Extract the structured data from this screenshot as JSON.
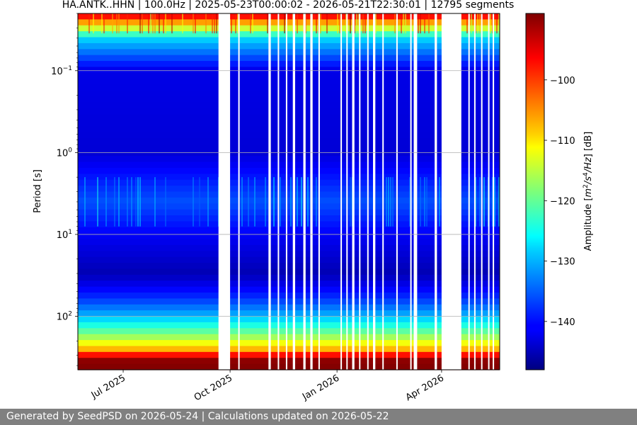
{
  "chart_data": {
    "type": "heatmap",
    "title": "HA.ANTK..HHN | 100.0Hz | 2025-05-23T00:00:02 - 2026-05-21T22:30:01 | 12795 segments",
    "ylabel": "Period [s]",
    "xlabel": "",
    "y_scale": "log",
    "y_axis_inverted": true,
    "y_range": [
      0.02,
      450
    ],
    "y_ticks": [
      {
        "value": 0.1,
        "base": "10",
        "exp": "−1"
      },
      {
        "value": 1,
        "base": "10",
        "exp": "0"
      },
      {
        "value": 10,
        "base": "10",
        "exp": "1"
      },
      {
        "value": 100,
        "base": "10",
        "exp": "2"
      }
    ],
    "x_range": [
      "2025-05-23",
      "2026-05-21"
    ],
    "x_ticks": [
      {
        "date": "2025-07-01",
        "label": "Jul 2025"
      },
      {
        "date": "2025-10-01",
        "label": "Oct 2025"
      },
      {
        "date": "2026-01-01",
        "label": "Jan 2026"
      },
      {
        "date": "2026-04-01",
        "label": "Apr 2026"
      }
    ],
    "grid": true,
    "colormap": "jet",
    "colorbar": {
      "label_pre": "Amplitude [",
      "label_m": "m",
      "label_sup2": "2",
      "label_s": "/s",
      "label_sup4": "4",
      "label_hz": "/Hz",
      "label_post": "] [dB]",
      "range": [
        -148,
        -89
      ],
      "ticks": [
        {
          "value": -100,
          "label": "−100"
        },
        {
          "value": -110,
          "label": "−110"
        },
        {
          "value": -120,
          "label": "−120"
        },
        {
          "value": -130,
          "label": "−130"
        },
        {
          "value": -140,
          "label": "−140"
        }
      ]
    },
    "data_gaps": [
      [
        "2025-09-21",
        "2025-10-01"
      ],
      [
        "2025-10-08",
        "2025-10-09"
      ],
      [
        "2025-11-03",
        "2025-11-05"
      ],
      [
        "2025-11-11",
        "2025-11-12"
      ],
      [
        "2025-11-18",
        "2025-11-19"
      ],
      [
        "2025-11-24",
        "2025-11-26"
      ],
      [
        "2025-12-03",
        "2025-12-05"
      ],
      [
        "2025-12-09",
        "2025-12-11"
      ],
      [
        "2025-12-16",
        "2025-12-17"
      ],
      [
        "2026-01-04",
        "2026-01-05"
      ],
      [
        "2026-01-09",
        "2026-01-10"
      ],
      [
        "2026-01-14",
        "2026-01-16"
      ],
      [
        "2026-01-20",
        "2026-01-21"
      ],
      [
        "2026-01-27",
        "2026-01-28"
      ],
      [
        "2026-02-01",
        "2026-02-03"
      ],
      [
        "2026-02-09",
        "2026-02-10"
      ],
      [
        "2026-02-21",
        "2026-02-22"
      ],
      [
        "2026-03-05",
        "2026-03-06"
      ],
      [
        "2026-03-08",
        "2026-03-11"
      ],
      [
        "2026-03-26",
        "2026-03-28"
      ],
      [
        "2026-04-01",
        "2026-04-18"
      ],
      [
        "2026-04-24",
        "2026-04-25"
      ],
      [
        "2026-04-29",
        "2026-04-30"
      ],
      [
        "2026-05-05",
        "2026-05-06"
      ],
      [
        "2026-05-11",
        "2026-05-12"
      ],
      [
        "2026-05-15",
        "2026-05-16"
      ]
    ],
    "amplitude_profile_db": [
      {
        "period": 0.02,
        "db": -93
      },
      {
        "period": 0.04,
        "db": -128
      },
      {
        "period": 0.1,
        "db": -142
      },
      {
        "period": 1,
        "db": -143
      },
      {
        "period": 4,
        "db": -136
      },
      {
        "period": 10,
        "db": -141
      },
      {
        "period": 30,
        "db": -145
      },
      {
        "period": 60,
        "db": -138
      },
      {
        "period": 100,
        "db": -130
      },
      {
        "period": 170,
        "db": -118
      },
      {
        "period": 260,
        "db": -106
      },
      {
        "period": 330,
        "db": -90
      },
      {
        "period": 450,
        "db": -89
      }
    ]
  },
  "footer": "Generated by SeedPSD on 2026-05-24 | Calculations updated on 2026-05-22"
}
